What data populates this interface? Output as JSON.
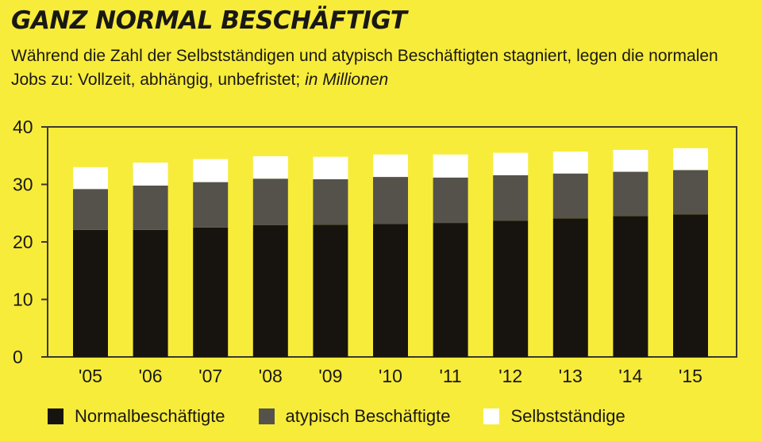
{
  "header": {
    "title": "GANZ NORMAL BESCHÄFTIGT",
    "subtitle": "Während die Zahl der Selbstständigen und atypisch Beschäftigten stagniert, legen die normalen Jobs zu: Vollzeit, abhängig, unbefristet;",
    "unit": "in Millionen"
  },
  "colors": {
    "background": "#f7ec3a",
    "normal": "#17140f",
    "atypisch": "#55524c",
    "selbst": "#ffffff",
    "frame": "#3a3832",
    "text": "#1a1816"
  },
  "chart_data": {
    "type": "bar",
    "stacked": true,
    "categories": [
      "'05",
      "'06",
      "'07",
      "'08",
      "'09",
      "'10",
      "'11",
      "'12",
      "'13",
      "'14",
      "'15"
    ],
    "series": [
      {
        "name": "Normalbeschäftigte",
        "color": "#17140f",
        "values": [
          22.1,
          22.1,
          22.5,
          22.9,
          23.0,
          23.1,
          23.3,
          23.7,
          24.1,
          24.5,
          24.8
        ]
      },
      {
        "name": "atypisch Beschäftigte",
        "color": "#55524c",
        "values": [
          7.1,
          7.7,
          7.9,
          8.1,
          7.9,
          8.2,
          7.9,
          7.9,
          7.8,
          7.7,
          7.7
        ]
      },
      {
        "name": "Selbstständige",
        "color": "#ffffff",
        "values": [
          3.8,
          4.0,
          4.0,
          3.9,
          3.9,
          3.9,
          4.0,
          3.9,
          3.8,
          3.8,
          3.8
        ]
      }
    ],
    "yticks": [
      0,
      10,
      20,
      30,
      40
    ],
    "ylim": [
      0,
      40
    ],
    "grid": false,
    "legend_position": "bottom"
  }
}
